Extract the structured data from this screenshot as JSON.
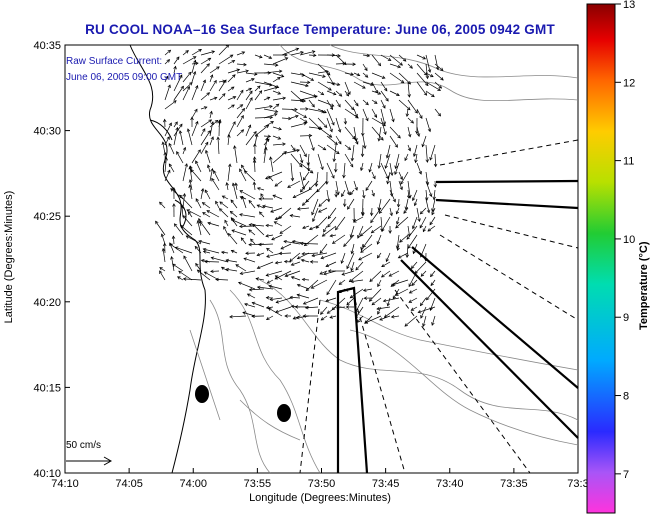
{
  "title": "RU COOL  NOAA–16  Sea Surface Temperature:  June 06, 2005 0942 GMT",
  "legend": {
    "line1": "Raw Surface Current:",
    "line2": "June 06, 2005 09:00 GMT",
    "scale_label": "50 cm/s"
  },
  "axes": {
    "xlabel": "Longitude (Degrees:Minutes)",
    "ylabel": "Latitude (Degrees:Minutes)",
    "xticks": [
      "74:10",
      "74:05",
      "74:00",
      "73:55",
      "73:50",
      "73:45",
      "73:40",
      "73:35",
      "73:3"
    ],
    "yticks": [
      "40:35",
      "40:30",
      "40:25",
      "40:20",
      "40:15",
      "40:10"
    ]
  },
  "colorbar": {
    "label": "Temperature (°C)",
    "ticks": [
      "13",
      "12",
      "11",
      "10",
      "9",
      "8",
      "7"
    ],
    "min": 6.5,
    "max": 13
  },
  "chart_data": {
    "type": "map",
    "title": "RU COOL  NOAA–16  Sea Surface Temperature:  June 06, 2005 0942 GMT",
    "xlabel": "Longitude (Degrees:Minutes)",
    "ylabel": "Latitude (Degrees:Minutes)",
    "xlim_deg": [
      -74.1667,
      -73.5
    ],
    "ylim_deg": [
      40.1667,
      40.5833
    ],
    "colorbar_range_c": [
      6.5,
      13
    ]
  }
}
